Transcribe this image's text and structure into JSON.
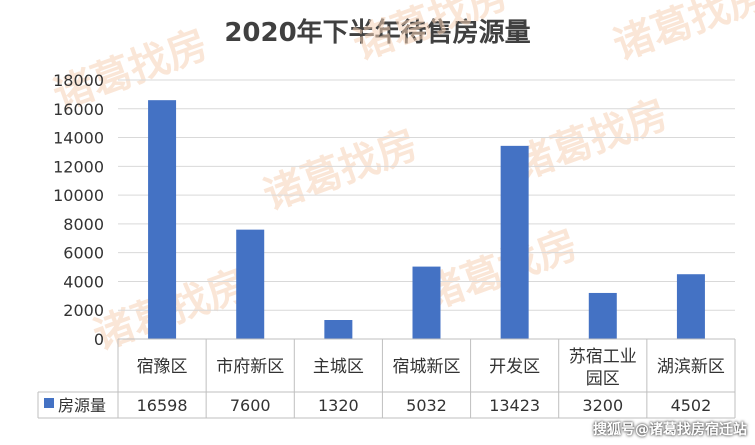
{
  "chart_data": {
    "type": "bar",
    "title": "2020年下半年待售房源量",
    "categories": [
      "宿豫区",
      "市府新区",
      "主城区",
      "宿城新区",
      "开发区",
      "苏宿工业园区",
      "湖滨新区"
    ],
    "category_lines": [
      [
        "宿豫区"
      ],
      [
        "市府新区"
      ],
      [
        "主城区"
      ],
      [
        "宿城新区"
      ],
      [
        "开发区"
      ],
      [
        "苏宿工业",
        "园区"
      ],
      [
        "湖滨新区"
      ]
    ],
    "series": [
      {
        "name": "房源量",
        "values": [
          16598,
          7600,
          1320,
          5032,
          13423,
          3200,
          4502
        ],
        "color": "#4472c4"
      }
    ],
    "ylim": [
      0,
      18000
    ],
    "yticks": [
      0,
      2000,
      4000,
      6000,
      8000,
      10000,
      12000,
      14000,
      16000,
      18000
    ],
    "grid": true,
    "data_table": true,
    "legend_placement": "data-table"
  },
  "caption": "搜狐号@诸葛找房宿迁站",
  "watermark_text": "诸葛找房"
}
